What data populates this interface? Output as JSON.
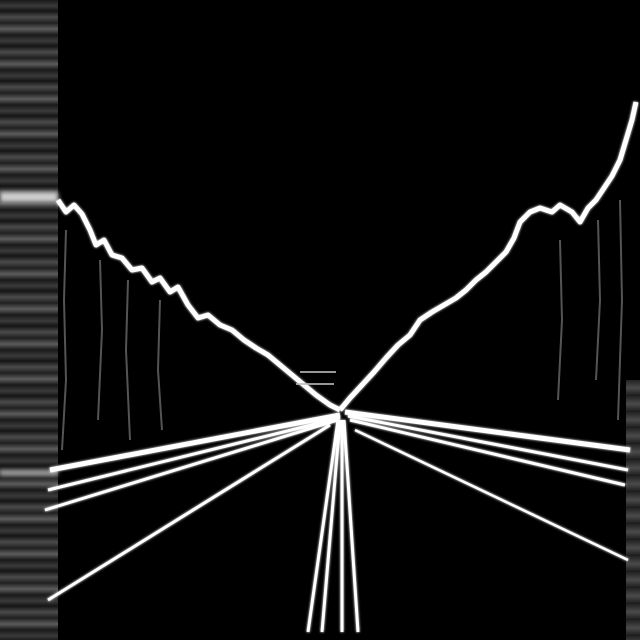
{
  "scene": {
    "subject": "edge-detected-road-vanishing-point",
    "colors": {
      "background": "#000000",
      "edge": "#ffffff",
      "strip_light": "#cfcfcf"
    },
    "icons": [
      "road-icon"
    ]
  }
}
